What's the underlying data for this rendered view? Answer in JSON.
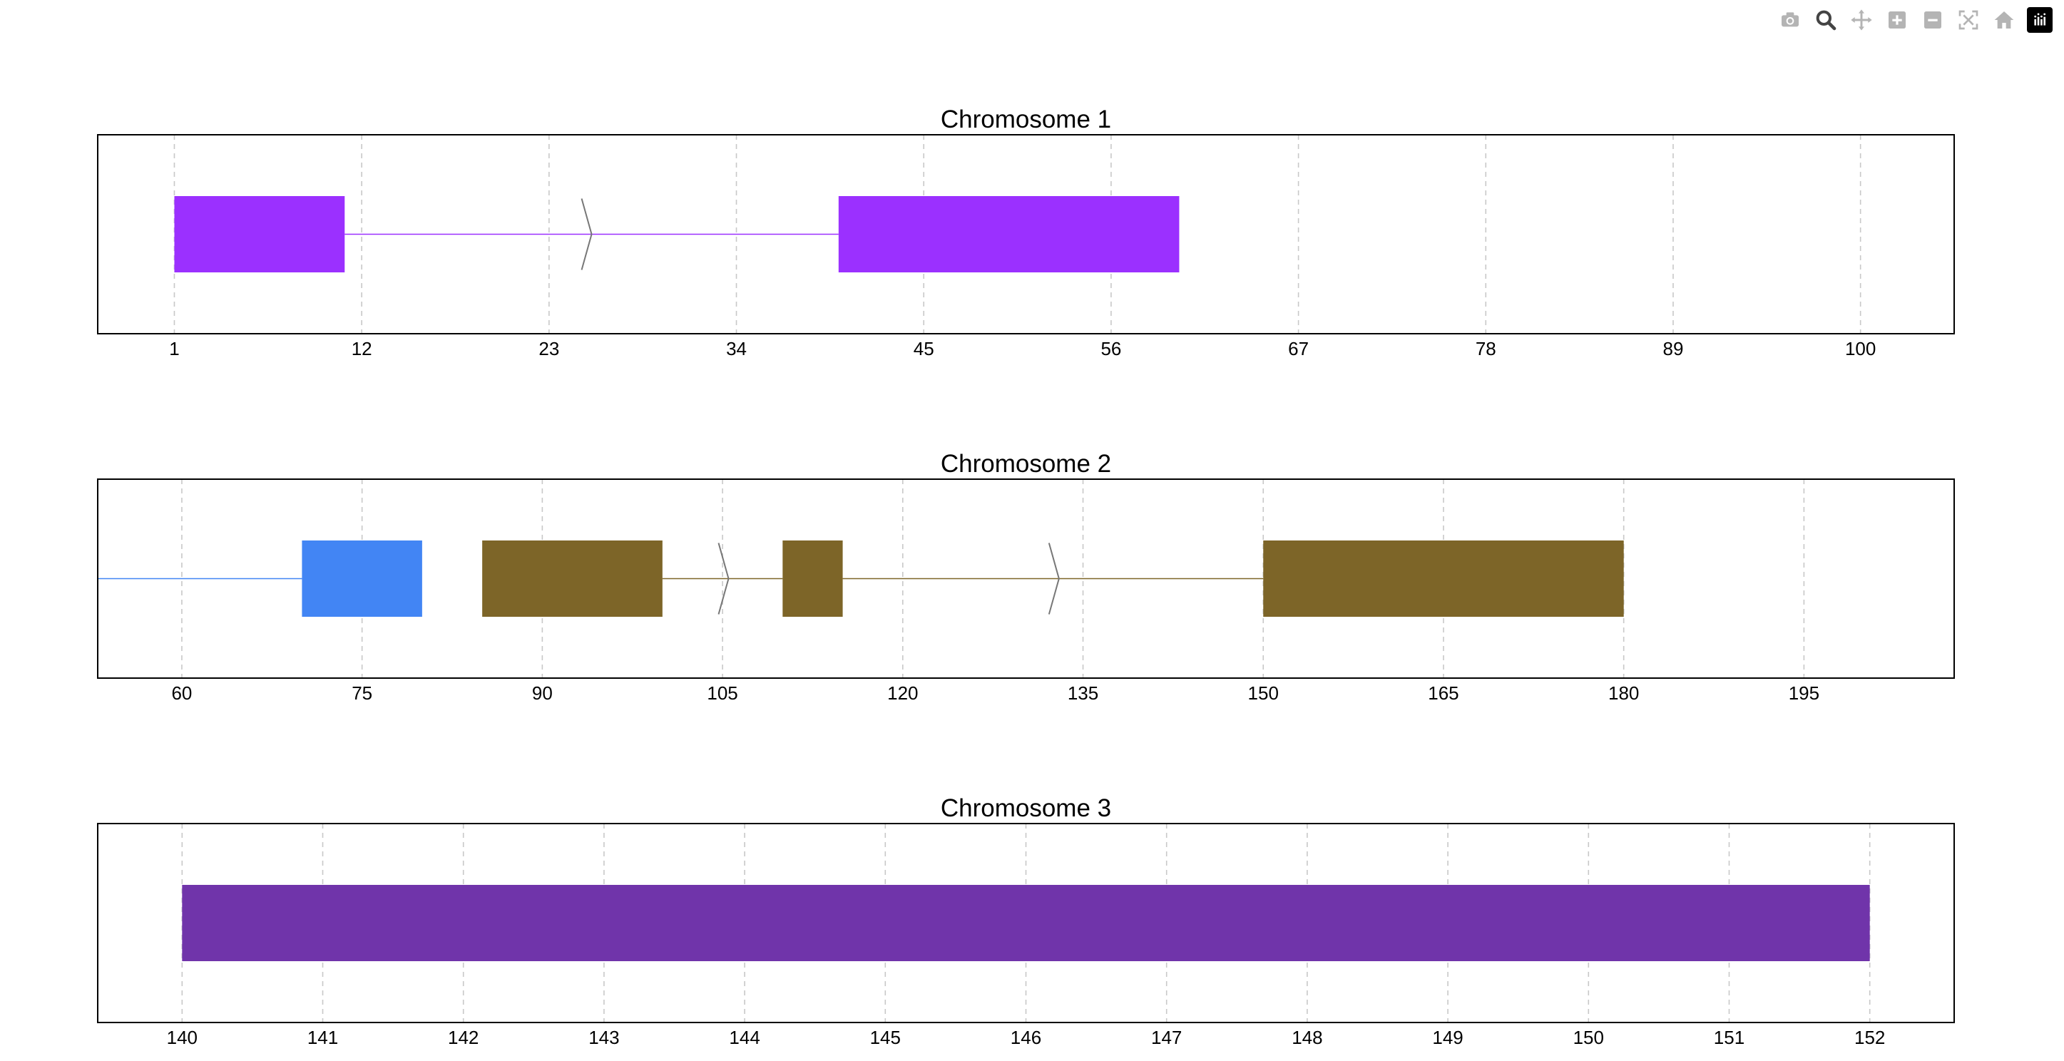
{
  "modebar": {
    "buttons": [
      "camera-icon",
      "zoom-icon",
      "pan-icon",
      "zoom-in-icon",
      "zoom-out-icon",
      "autoscale-icon",
      "home-icon",
      "plotly-logo-icon"
    ]
  },
  "chart_data": [
    {
      "type": "gene-track",
      "title": "Chromosome 1",
      "xlim": [
        -3.5,
        105.5
      ],
      "ticks": [
        1,
        12,
        23,
        34,
        45,
        56,
        67,
        78,
        89,
        100
      ],
      "grid": true,
      "lines": [
        {
          "start": 11,
          "end": 40,
          "color": "#9B30FF"
        }
      ],
      "arrows": [
        {
          "x": 25.5,
          "direction": "right"
        }
      ],
      "exons": [
        {
          "start": 1,
          "end": 11,
          "color": "#9B30FF"
        },
        {
          "start": 40,
          "end": 60,
          "color": "#9B30FF"
        }
      ]
    },
    {
      "type": "gene-track",
      "title": "Chromosome 2",
      "xlim": [
        53,
        207.5
      ],
      "ticks": [
        60,
        75,
        90,
        105,
        120,
        135,
        150,
        165,
        180,
        195
      ],
      "grid": true,
      "lines": [
        {
          "start": 53,
          "end": 70,
          "color": "#4285F4"
        },
        {
          "start": 100,
          "end": 110,
          "color": "#7D6528"
        },
        {
          "start": 115,
          "end": 150,
          "color": "#7D6528"
        }
      ],
      "arrows": [
        {
          "x": 105.5,
          "direction": "right"
        },
        {
          "x": 133,
          "direction": "right"
        }
      ],
      "exons": [
        {
          "start": 70,
          "end": 80,
          "color": "#4285F4"
        },
        {
          "start": 85,
          "end": 100,
          "color": "#7D6528"
        },
        {
          "start": 110,
          "end": 115,
          "color": "#7D6528"
        },
        {
          "start": 150,
          "end": 180,
          "color": "#7D6528"
        }
      ]
    },
    {
      "type": "gene-track",
      "title": "Chromosome 3",
      "xlim": [
        139.4,
        152.6
      ],
      "ticks": [
        140,
        141,
        142,
        143,
        144,
        145,
        146,
        147,
        148,
        149,
        150,
        151,
        152
      ],
      "grid": true,
      "lines": [],
      "arrows": [],
      "exons": [
        {
          "start": 140,
          "end": 152,
          "color": "#7034AA"
        }
      ]
    }
  ]
}
